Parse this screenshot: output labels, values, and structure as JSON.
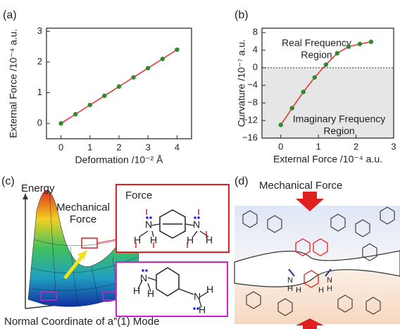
{
  "chart_data": [
    {
      "type": "line",
      "panel_label": "(a)",
      "x_label": "Deformation /10⁻² Å",
      "y_label": "External Force /10⁻⁴ a.u.",
      "x": [
        0,
        0.5,
        1,
        1.5,
        2,
        2.5,
        3,
        3.5,
        4
      ],
      "values": [
        0,
        0.3,
        0.6,
        0.9,
        1.2,
        1.5,
        1.8,
        2.1,
        2.4
      ],
      "color": "#e8302a",
      "marker_color": "#2e8b2e",
      "xlim": [
        -0.5,
        4.5
      ],
      "ylim": [
        -0.5,
        3.1
      ],
      "xticks": [
        0,
        1,
        2,
        3,
        4
      ],
      "yticks": [
        0,
        1,
        2,
        3
      ],
      "grid": false
    },
    {
      "type": "line",
      "panel_label": "(b)",
      "x_label": "External Force /10⁻⁴ a.u.",
      "y_label": "Curvature /10⁻⁷ a.u.",
      "x": [
        0,
        0.3,
        0.6,
        0.9,
        1.2,
        1.5,
        1.8,
        2.1,
        2.4
      ],
      "values": [
        -13,
        -9.2,
        -5.5,
        -2.2,
        0.7,
        3.3,
        4.8,
        5.4,
        5.9
      ],
      "color": "#e8302a",
      "marker_color": "#2e8b2e",
      "xlim": [
        -0.5,
        3.0
      ],
      "ylim": [
        -16,
        9
      ],
      "xticks": [
        0,
        1,
        2,
        3
      ],
      "yticks": [
        {
          "value": -16,
          "label": "−16"
        },
        {
          "value": -12,
          "label": "−12"
        },
        {
          "value": -8,
          "label": "−8"
        },
        {
          "value": -4,
          "label": "−4"
        },
        0,
        4,
        8
      ],
      "reference_line": 0,
      "shade_below_reference": true,
      "grid": false,
      "annotations": [
        {
          "lines": [
            "Real Frequency",
            "Region"
          ],
          "x": 0.95,
          "y": 5.5
        },
        {
          "lines": [
            "Imaginary Frequency",
            "Region"
          ],
          "x": 1.55,
          "y": -11.8
        }
      ]
    }
  ],
  "panel_c": {
    "label": "(c)",
    "y_axis": "Energy",
    "force_label": [
      "Mechanical",
      "Force"
    ],
    "x_axis": "Normal Coordinate of a″(1) Mode",
    "box_force_label": "Force",
    "upper_atoms": [
      "N",
      "N",
      "H",
      "H",
      "H",
      "H"
    ],
    "lower_atoms": [
      "N",
      "N",
      "H",
      "H",
      "H",
      "H"
    ]
  },
  "panel_d": {
    "label": "(d)",
    "force_label": "Mechanical Force",
    "atoms": [
      "N",
      "H",
      "H",
      "N",
      "H",
      "H"
    ]
  }
}
